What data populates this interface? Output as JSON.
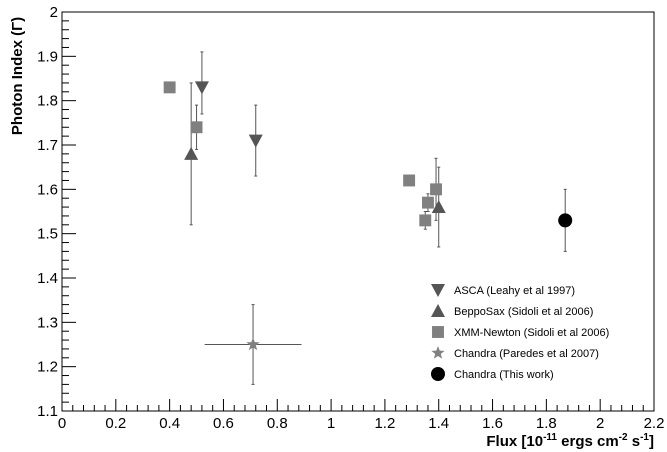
{
  "chart_data": {
    "type": "scatter",
    "xlabel": "Flux [10-11 ergs cm-2 s-1]",
    "xlabel_parts": {
      "main": "Flux [10",
      "sup1": "-11",
      "mid": " ergs cm",
      "sup2": "-2",
      "mid2": " s",
      "sup3": "-1",
      "end": "]"
    },
    "ylabel": "Photon Index (Γ)",
    "xlim": [
      0,
      2.2
    ],
    "ylim": [
      1.1,
      2.0
    ],
    "xticks": [
      "0",
      "0.2",
      "0.4",
      "0.6",
      "0.8",
      "1",
      "1.2",
      "1.4",
      "1.6",
      "1.8",
      "2",
      "2.2"
    ],
    "yticks": [
      "1.1",
      "1.2",
      "1.3",
      "1.4",
      "1.5",
      "1.6",
      "1.7",
      "1.8",
      "1.9",
      "2"
    ],
    "legend_position": "bottom-right",
    "series": [
      {
        "name": "ASCA (Leahy et al 1997)",
        "marker": "triangle-down",
        "color": "#555555",
        "points": [
          {
            "x": 0.52,
            "y": 1.83,
            "ylo": 1.77,
            "yhi": 1.91
          },
          {
            "x": 0.72,
            "y": 1.71,
            "ylo": 1.63,
            "yhi": 1.79
          }
        ]
      },
      {
        "name": "BeppoSax (Sidoli et al 2006)",
        "marker": "triangle-up",
        "color": "#555555",
        "points": [
          {
            "x": 0.48,
            "y": 1.68,
            "ylo": 1.52,
            "yhi": 1.84
          },
          {
            "x": 1.4,
            "y": 1.56,
            "ylo": 1.47,
            "yhi": 1.65
          }
        ]
      },
      {
        "name": "XMM-Newton (Sidoli et al 2006)",
        "marker": "square",
        "color": "#808080",
        "points": [
          {
            "x": 0.4,
            "y": 1.83
          },
          {
            "x": 0.5,
            "y": 1.74,
            "ylo": 1.69,
            "yhi": 1.79
          },
          {
            "x": 1.29,
            "y": 1.62
          },
          {
            "x": 1.36,
            "y": 1.57,
            "ylo": 1.55,
            "yhi": 1.59
          },
          {
            "x": 1.35,
            "y": 1.53,
            "ylo": 1.51,
            "yhi": 1.55
          },
          {
            "x": 1.39,
            "y": 1.6,
            "ylo": 1.53,
            "yhi": 1.67
          }
        ]
      },
      {
        "name": "Chandra (Paredes et al 2007)",
        "marker": "star",
        "color": "#808080",
        "points": [
          {
            "x": 0.71,
            "y": 1.25,
            "ylo": 1.16,
            "yhi": 1.34,
            "xlo": 0.53,
            "xhi": 0.89
          }
        ]
      },
      {
        "name": "Chandra (This work)",
        "marker": "circle",
        "color": "#000000",
        "points": [
          {
            "x": 1.87,
            "y": 1.53,
            "ylo": 1.46,
            "yhi": 1.6
          }
        ]
      }
    ]
  }
}
